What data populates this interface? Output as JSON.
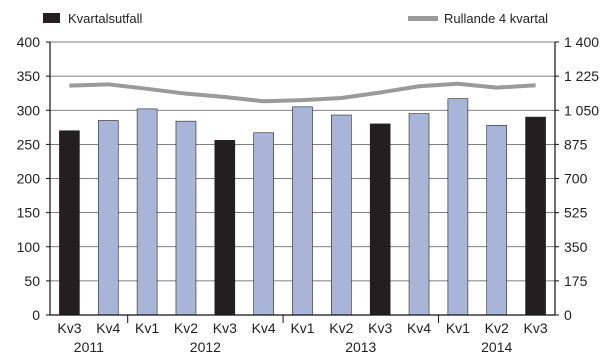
{
  "chart_data": {
    "type": "bar",
    "categories": [
      "Kv3",
      "Kv4",
      "Kv1",
      "Kv2",
      "Kv3",
      "Kv4",
      "Kv1",
      "Kv2",
      "Kv3",
      "Kv4",
      "Kv1",
      "Kv2",
      "Kv3"
    ],
    "year_labels": [
      "2011",
      "2012",
      "2013",
      "2014"
    ],
    "series": [
      {
        "name": "Kvartalsutfall",
        "type": "bar",
        "axis": "left",
        "values": [
          270,
          285,
          302,
          284,
          256,
          267,
          305,
          293,
          280,
          295,
          317,
          278,
          290
        ],
        "colors": [
          "#231f20",
          "#a9b4d9",
          "#a9b4d9",
          "#a9b4d9",
          "#231f20",
          "#a9b4d9",
          "#a9b4d9",
          "#a9b4d9",
          "#231f20",
          "#a9b4d9",
          "#a9b4d9",
          "#a9b4d9",
          "#231f20"
        ]
      },
      {
        "name": "Rullande 4 kvartal",
        "type": "line",
        "axis": "right",
        "values": [
          1176,
          1183,
          1160,
          1135,
          1118,
          1096,
          1102,
          1113,
          1141,
          1173,
          1186,
          1166,
          1178
        ],
        "color": "#9a9a9a"
      }
    ],
    "ylim_left": [
      0,
      400
    ],
    "yticks_left": [
      0,
      50,
      100,
      150,
      200,
      250,
      300,
      350,
      400
    ],
    "ylim_right": [
      0,
      1400
    ],
    "yticks_right": [
      "0",
      "175",
      "350",
      "525",
      "700",
      "875",
      "1 050",
      "1 225",
      "1 400"
    ],
    "grid": "horizontal",
    "legend_position": "top"
  },
  "colors": {
    "highlight_bar": "#231f20",
    "bar": "#a9b4d9",
    "line": "#9a9a9a",
    "grid": "#555555"
  }
}
